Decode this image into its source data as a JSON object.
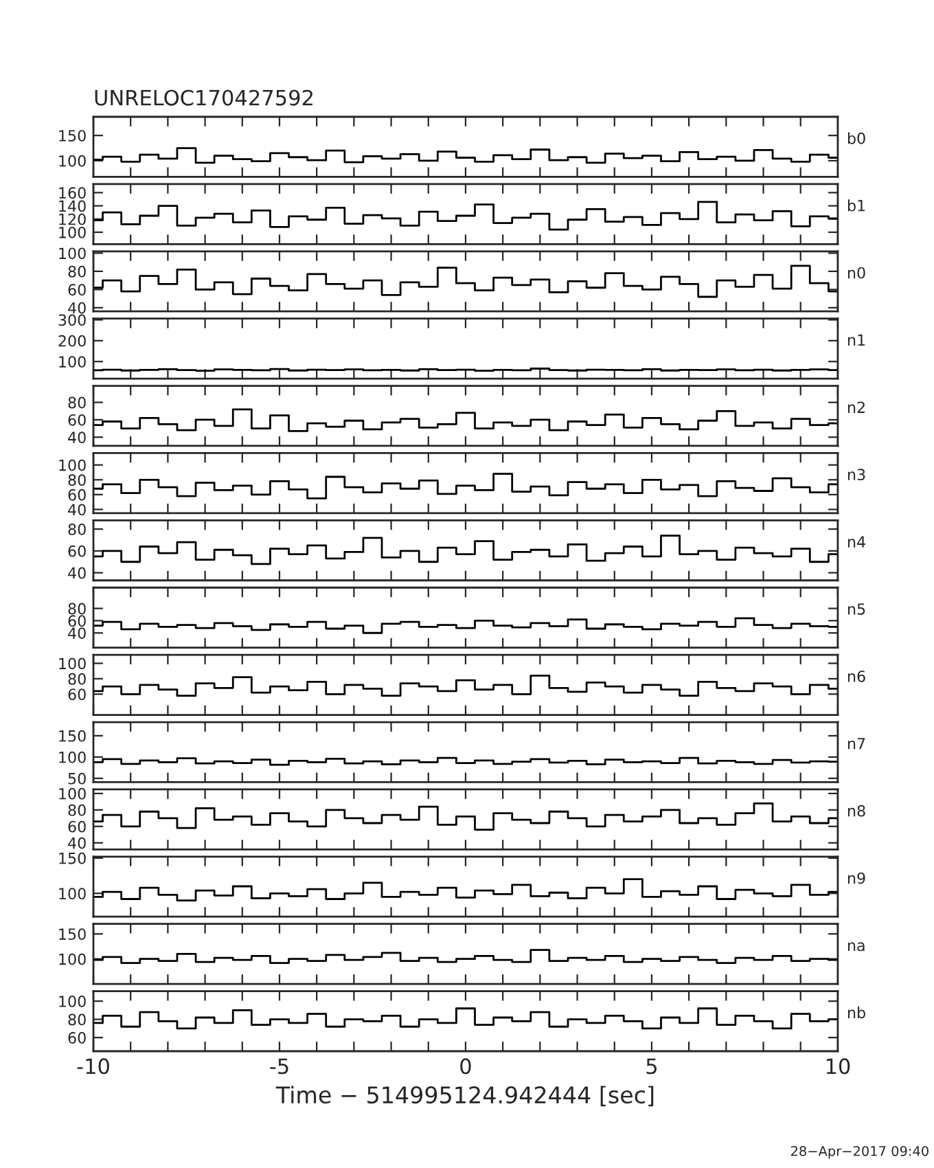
{
  "chart_data": [
    {
      "type": "step",
      "title": "UNRELOC170427592",
      "tick_labels": "y",
      "xlim": [
        -10,
        10
      ],
      "xticks": [
        -10,
        {
          "value": -9,
          "label": null
        },
        {
          "value": -8,
          "label": null
        },
        {
          "value": -7,
          "label": null
        },
        {
          "value": -6,
          "label": null
        },
        -5,
        {
          "value": -4,
          "label": null
        },
        {
          "value": -3,
          "label": null
        },
        {
          "value": -2,
          "label": null
        },
        {
          "value": -1,
          "label": null
        },
        0,
        {
          "value": 1,
          "label": null
        },
        {
          "value": 2,
          "label": null
        },
        {
          "value": 3,
          "label": null
        },
        {
          "value": 4,
          "label": null
        },
        5,
        {
          "value": 6,
          "label": null
        },
        {
          "value": 7,
          "label": null
        },
        {
          "value": 8,
          "label": null
        },
        {
          "value": 9,
          "label": null
        },
        10
      ],
      "ylim": [
        68,
        187
      ],
      "yticks": [
        100,
        150
      ],
      "x": [
        -10,
        -9.5,
        -9,
        -8.5,
        -8,
        -7.5,
        -7,
        -6.5,
        -6,
        -5.5,
        -5,
        -4.5,
        -4,
        -3.5,
        -3,
        -2.5,
        -2,
        -1.5,
        -1,
        -0.5,
        0,
        0.5,
        1,
        1.5,
        2,
        2.5,
        3,
        3.5,
        4,
        4.5,
        5,
        5.5,
        6,
        6.5,
        7,
        7.5,
        8,
        8.5,
        9,
        9.5,
        10
      ],
      "series": [
        {
          "name": "b0",
          "color": "#000000",
          "values": [
            102,
            108,
            98,
            112,
            104,
            125,
            96,
            110,
            103,
            99,
            115,
            107,
            101,
            120,
            97,
            109,
            104,
            113,
            100,
            118,
            106,
            98,
            111,
            103,
            122,
            101,
            107,
            96,
            114,
            105,
            110,
            99,
            117,
            103,
            108,
            100,
            121,
            104,
            98,
            112,
            106
          ]
        }
      ]
    },
    {
      "type": "step",
      "tick_labels": "y",
      "xlim": [
        -10,
        10
      ],
      "xticks": [
        -10,
        {
          "value": -9,
          "label": null
        },
        {
          "value": -8,
          "label": null
        },
        {
          "value": -7,
          "label": null
        },
        {
          "value": -6,
          "label": null
        },
        -5,
        {
          "value": -4,
          "label": null
        },
        {
          "value": -3,
          "label": null
        },
        {
          "value": -2,
          "label": null
        },
        {
          "value": -1,
          "label": null
        },
        0,
        {
          "value": 1,
          "label": null
        },
        {
          "value": 2,
          "label": null
        },
        {
          "value": 3,
          "label": null
        },
        {
          "value": 4,
          "label": null
        },
        5,
        {
          "value": 6,
          "label": null
        },
        {
          "value": 7,
          "label": null
        },
        {
          "value": 8,
          "label": null
        },
        {
          "value": 9,
          "label": null
        },
        10
      ],
      "ylim": [
        82,
        173
      ],
      "yticks": [
        100,
        120,
        140,
        160
      ],
      "x": [
        -10,
        -9.5,
        -9,
        -8.5,
        -8,
        -7.5,
        -7,
        -6.5,
        -6,
        -5.5,
        -5,
        -4.5,
        -4,
        -3.5,
        -3,
        -2.5,
        -2,
        -1.5,
        -1,
        -0.5,
        0,
        0.5,
        1,
        1.5,
        2,
        2.5,
        3,
        3.5,
        4,
        4.5,
        5,
        5.5,
        6,
        6.5,
        7,
        7.5,
        8,
        8.5,
        9,
        9.5,
        10
      ],
      "series": [
        {
          "name": "b1",
          "color": "#000000",
          "values": [
            118,
            130,
            112,
            125,
            140,
            110,
            122,
            128,
            115,
            133,
            108,
            124,
            119,
            137,
            113,
            126,
            121,
            110,
            131,
            117,
            125,
            142,
            114,
            122,
            128,
            104,
            119,
            135,
            116,
            123,
            111,
            129,
            120,
            146,
            115,
            127,
            118,
            132,
            109,
            124,
            121
          ]
        }
      ]
    },
    {
      "type": "step",
      "tick_labels": "y",
      "xlim": [
        -10,
        10
      ],
      "xticks": [
        -10,
        {
          "value": -9,
          "label": null
        },
        {
          "value": -8,
          "label": null
        },
        {
          "value": -7,
          "label": null
        },
        {
          "value": -6,
          "label": null
        },
        -5,
        {
          "value": -4,
          "label": null
        },
        {
          "value": -3,
          "label": null
        },
        {
          "value": -2,
          "label": null
        },
        {
          "value": -1,
          "label": null
        },
        0,
        {
          "value": 1,
          "label": null
        },
        {
          "value": 2,
          "label": null
        },
        {
          "value": 3,
          "label": null
        },
        {
          "value": 4,
          "label": null
        },
        5,
        {
          "value": 6,
          "label": null
        },
        {
          "value": 7,
          "label": null
        },
        {
          "value": 8,
          "label": null
        },
        {
          "value": 9,
          "label": null
        },
        10
      ],
      "ylim": [
        36,
        102
      ],
      "yticks": [
        40,
        60,
        80,
        100
      ],
      "x": [
        -10,
        -9.5,
        -9,
        -8.5,
        -8,
        -7.5,
        -7,
        -6.5,
        -6,
        -5.5,
        -5,
        -4.5,
        -4,
        -3.5,
        -3,
        -2.5,
        -2,
        -1.5,
        -1,
        -0.5,
        0,
        0.5,
        1,
        1.5,
        2,
        2.5,
        3,
        3.5,
        4,
        4.5,
        5,
        5.5,
        6,
        6.5,
        7,
        7.5,
        8,
        8.5,
        9,
        9.5,
        10
      ],
      "series": [
        {
          "name": "n0",
          "color": "#000000",
          "values": [
            62,
            70,
            58,
            75,
            66,
            82,
            60,
            68,
            55,
            72,
            64,
            59,
            77,
            66,
            61,
            70,
            54,
            68,
            63,
            84,
            67,
            59,
            73,
            65,
            71,
            57,
            69,
            62,
            78,
            64,
            60,
            74,
            66,
            52,
            70,
            63,
            76,
            61,
            86,
            67,
            58
          ]
        }
      ]
    },
    {
      "type": "step",
      "tick_labels": "y",
      "xlim": [
        -10,
        10
      ],
      "xticks": [
        -10,
        {
          "value": -9,
          "label": null
        },
        {
          "value": -8,
          "label": null
        },
        {
          "value": -7,
          "label": null
        },
        {
          "value": -6,
          "label": null
        },
        -5,
        {
          "value": -4,
          "label": null
        },
        {
          "value": -3,
          "label": null
        },
        {
          "value": -2,
          "label": null
        },
        {
          "value": -1,
          "label": null
        },
        0,
        {
          "value": 1,
          "label": null
        },
        {
          "value": 2,
          "label": null
        },
        {
          "value": 3,
          "label": null
        },
        {
          "value": 4,
          "label": null
        },
        5,
        {
          "value": 6,
          "label": null
        },
        {
          "value": 7,
          "label": null
        },
        {
          "value": 8,
          "label": null
        },
        {
          "value": 9,
          "label": null
        },
        10
      ],
      "ylim": [
        18,
        306
      ],
      "yticks": [
        100,
        200,
        300
      ],
      "x": [
        -10,
        -9.5,
        -9,
        -8.5,
        -8,
        -7.5,
        -7,
        -6.5,
        -6,
        -5.5,
        -5,
        -4.5,
        -4,
        -3.5,
        -3,
        -2.5,
        -2,
        -1.5,
        -1,
        -0.5,
        0,
        0.5,
        1,
        1.5,
        2,
        2.5,
        3,
        3.5,
        4,
        4.5,
        5,
        5.5,
        6,
        6.5,
        7,
        7.5,
        8,
        8.5,
        9,
        9.5,
        10
      ],
      "series": [
        {
          "name": "n1",
          "color": "#000000",
          "values": [
            58,
            61,
            57,
            60,
            63,
            59,
            56,
            62,
            60,
            58,
            64,
            57,
            61,
            59,
            62,
            58,
            60,
            57,
            63,
            59,
            61,
            56,
            60,
            58,
            66,
            59,
            57,
            61,
            60,
            58,
            63,
            57,
            60,
            59,
            62,
            58,
            61,
            57,
            60,
            62,
            59
          ]
        }
      ]
    },
    {
      "type": "step",
      "tick_labels": "y",
      "xlim": [
        -10,
        10
      ],
      "xticks": [
        -10,
        {
          "value": -9,
          "label": null
        },
        {
          "value": -8,
          "label": null
        },
        {
          "value": -7,
          "label": null
        },
        {
          "value": -6,
          "label": null
        },
        -5,
        {
          "value": -4,
          "label": null
        },
        {
          "value": -3,
          "label": null
        },
        {
          "value": -2,
          "label": null
        },
        {
          "value": -1,
          "label": null
        },
        0,
        {
          "value": 1,
          "label": null
        },
        {
          "value": 2,
          "label": null
        },
        {
          "value": 3,
          "label": null
        },
        {
          "value": 4,
          "label": null
        },
        5,
        {
          "value": 6,
          "label": null
        },
        {
          "value": 7,
          "label": null
        },
        {
          "value": 8,
          "label": null
        },
        {
          "value": 9,
          "label": null
        },
        10
      ],
      "ylim": [
        30,
        99
      ],
      "yticks": [
        40,
        60,
        80
      ],
      "x": [
        -10,
        -9.5,
        -9,
        -8.5,
        -8,
        -7.5,
        -7,
        -6.5,
        -6,
        -5.5,
        -5,
        -4.5,
        -4,
        -3.5,
        -3,
        -2.5,
        -2,
        -1.5,
        -1,
        -0.5,
        0,
        0.5,
        1,
        1.5,
        2,
        2.5,
        3,
        3.5,
        4,
        4.5,
        5,
        5.5,
        6,
        6.5,
        7,
        7.5,
        8,
        8.5,
        9,
        9.5,
        10
      ],
      "series": [
        {
          "name": "n2",
          "color": "#000000",
          "values": [
            54,
            58,
            50,
            62,
            55,
            48,
            60,
            53,
            72,
            50,
            65,
            47,
            56,
            52,
            59,
            49,
            57,
            61,
            51,
            55,
            68,
            50,
            57,
            53,
            60,
            48,
            58,
            54,
            66,
            51,
            62,
            55,
            49,
            59,
            70,
            53,
            57,
            50,
            61,
            54,
            56
          ]
        }
      ]
    },
    {
      "type": "step",
      "tick_labels": "y",
      "xlim": [
        -10,
        10
      ],
      "xticks": [
        -10,
        {
          "value": -9,
          "label": null
        },
        {
          "value": -8,
          "label": null
        },
        {
          "value": -7,
          "label": null
        },
        {
          "value": -6,
          "label": null
        },
        -5,
        {
          "value": -4,
          "label": null
        },
        {
          "value": -3,
          "label": null
        },
        {
          "value": -2,
          "label": null
        },
        {
          "value": -1,
          "label": null
        },
        0,
        {
          "value": 1,
          "label": null
        },
        {
          "value": 2,
          "label": null
        },
        {
          "value": 3,
          "label": null
        },
        {
          "value": 4,
          "label": null
        },
        5,
        {
          "value": 6,
          "label": null
        },
        {
          "value": 7,
          "label": null
        },
        {
          "value": 8,
          "label": null
        },
        {
          "value": 9,
          "label": null
        },
        10
      ],
      "ylim": [
        35,
        116
      ],
      "yticks": [
        40,
        60,
        80,
        100
      ],
      "x": [
        -10,
        -9.5,
        -9,
        -8.5,
        -8,
        -7.5,
        -7,
        -6.5,
        -6,
        -5.5,
        -5,
        -4.5,
        -4,
        -3.5,
        -3,
        -2.5,
        -2,
        -1.5,
        -1,
        -0.5,
        0,
        0.5,
        1,
        1.5,
        2,
        2.5,
        3,
        3.5,
        4,
        4.5,
        5,
        5.5,
        6,
        6.5,
        7,
        7.5,
        8,
        8.5,
        9,
        9.5,
        10
      ],
      "series": [
        {
          "name": "n3",
          "color": "#000000",
          "values": [
            68,
            74,
            62,
            80,
            70,
            58,
            76,
            66,
            72,
            60,
            78,
            67,
            55,
            84,
            70,
            63,
            75,
            68,
            79,
            61,
            72,
            66,
            88,
            64,
            71,
            59,
            77,
            68,
            74,
            62,
            80,
            67,
            73,
            58,
            78,
            69,
            65,
            82,
            70,
            63,
            74
          ]
        }
      ]
    },
    {
      "type": "step",
      "tick_labels": "y",
      "xlim": [
        -10,
        10
      ],
      "xticks": [
        -10,
        {
          "value": -9,
          "label": null
        },
        {
          "value": -8,
          "label": null
        },
        {
          "value": -7,
          "label": null
        },
        {
          "value": -6,
          "label": null
        },
        -5,
        {
          "value": -4,
          "label": null
        },
        {
          "value": -3,
          "label": null
        },
        {
          "value": -2,
          "label": null
        },
        {
          "value": -1,
          "label": null
        },
        0,
        {
          "value": 1,
          "label": null
        },
        {
          "value": 2,
          "label": null
        },
        {
          "value": 3,
          "label": null
        },
        {
          "value": 4,
          "label": null
        },
        5,
        {
          "value": 6,
          "label": null
        },
        {
          "value": 7,
          "label": null
        },
        {
          "value": 8,
          "label": null
        },
        {
          "value": 9,
          "label": null
        },
        10
      ],
      "ylim": [
        33,
        88
      ],
      "yticks": [
        40,
        60,
        80
      ],
      "x": [
        -10,
        -9.5,
        -9,
        -8.5,
        -8,
        -7.5,
        -7,
        -6.5,
        -6,
        -5.5,
        -5,
        -4.5,
        -4,
        -3.5,
        -3,
        -2.5,
        -2,
        -1.5,
        -1,
        -0.5,
        0,
        0.5,
        1,
        1.5,
        2,
        2.5,
        3,
        3.5,
        4,
        4.5,
        5,
        5.5,
        6,
        6.5,
        7,
        7.5,
        8,
        8.5,
        9,
        9.5,
        10
      ],
      "series": [
        {
          "name": "n4",
          "color": "#000000",
          "values": [
            55,
            60,
            50,
            64,
            58,
            68,
            52,
            61,
            56,
            48,
            62,
            57,
            65,
            53,
            59,
            72,
            54,
            60,
            50,
            63,
            57,
            69,
            52,
            59,
            61,
            55,
            66,
            51,
            58,
            64,
            55,
            74,
            57,
            60,
            52,
            63,
            58,
            55,
            62,
            50,
            57
          ]
        }
      ]
    },
    {
      "type": "step",
      "tick_labels": "y",
      "xlim": [
        -10,
        10
      ],
      "xticks": [
        -10,
        {
          "value": -9,
          "label": null
        },
        {
          "value": -8,
          "label": null
        },
        {
          "value": -7,
          "label": null
        },
        {
          "value": -6,
          "label": null
        },
        -5,
        {
          "value": -4,
          "label": null
        },
        {
          "value": -3,
          "label": null
        },
        {
          "value": -2,
          "label": null
        },
        {
          "value": -1,
          "label": null
        },
        0,
        {
          "value": 1,
          "label": null
        },
        {
          "value": 2,
          "label": null
        },
        {
          "value": 3,
          "label": null
        },
        {
          "value": 4,
          "label": null
        },
        5,
        {
          "value": 6,
          "label": null
        },
        {
          "value": 7,
          "label": null
        },
        {
          "value": 8,
          "label": null
        },
        {
          "value": 9,
          "label": null
        },
        10
      ],
      "ylim": [
        16,
        114
      ],
      "yticks": [
        40,
        60,
        80
      ],
      "x": [
        -10,
        -9.5,
        -9,
        -8.5,
        -8,
        -7.5,
        -7,
        -6.5,
        -6,
        -5.5,
        -5,
        -4.5,
        -4,
        -3.5,
        -3,
        -2.5,
        -2,
        -1.5,
        -1,
        -0.5,
        0,
        0.5,
        1,
        1.5,
        2,
        2.5,
        3,
        3.5,
        4,
        4.5,
        5,
        5.5,
        6,
        6.5,
        7,
        7.5,
        8,
        8.5,
        9,
        9.5,
        10
      ],
      "series": [
        {
          "name": "n5",
          "color": "#000000",
          "values": [
            52,
            58,
            46,
            55,
            50,
            53,
            48,
            56,
            51,
            45,
            54,
            50,
            58,
            47,
            52,
            40,
            55,
            58,
            50,
            53,
            48,
            60,
            52,
            49,
            56,
            51,
            62,
            47,
            54,
            50,
            46,
            55,
            52,
            58,
            50,
            64,
            53,
            48,
            55,
            51,
            50
          ]
        }
      ]
    },
    {
      "type": "step",
      "tick_labels": "y",
      "xlim": [
        -10,
        10
      ],
      "xticks": [
        -10,
        {
          "value": -9,
          "label": null
        },
        {
          "value": -8,
          "label": null
        },
        {
          "value": -7,
          "label": null
        },
        {
          "value": -6,
          "label": null
        },
        -5,
        {
          "value": -4,
          "label": null
        },
        {
          "value": -3,
          "label": null
        },
        {
          "value": -2,
          "label": null
        },
        {
          "value": -1,
          "label": null
        },
        0,
        {
          "value": 1,
          "label": null
        },
        {
          "value": 2,
          "label": null
        },
        {
          "value": 3,
          "label": null
        },
        {
          "value": 4,
          "label": null
        },
        5,
        {
          "value": 6,
          "label": null
        },
        {
          "value": 7,
          "label": null
        },
        {
          "value": 8,
          "label": null
        },
        {
          "value": 9,
          "label": null
        },
        10
      ],
      "ylim": [
        33,
        111
      ],
      "yticks": [
        60,
        80,
        100
      ],
      "x": [
        -10,
        -9.5,
        -9,
        -8.5,
        -8,
        -7.5,
        -7,
        -6.5,
        -6,
        -5.5,
        -5,
        -4.5,
        -4,
        -3.5,
        -3,
        -2.5,
        -2,
        -1.5,
        -1,
        -0.5,
        0,
        0.5,
        1,
        1.5,
        2,
        2.5,
        3,
        3.5,
        4,
        4.5,
        5,
        5.5,
        6,
        6.5,
        7,
        7.5,
        8,
        8.5,
        9,
        9.5,
        10
      ],
      "series": [
        {
          "name": "n6",
          "color": "#000000",
          "values": [
            64,
            70,
            60,
            72,
            66,
            58,
            74,
            68,
            82,
            62,
            70,
            65,
            76,
            60,
            72,
            67,
            58,
            74,
            70,
            64,
            78,
            66,
            72,
            60,
            84,
            68,
            63,
            75,
            70,
            62,
            72,
            66,
            58,
            76,
            68,
            64,
            74,
            70,
            60,
            72,
            67
          ]
        }
      ]
    },
    {
      "type": "step",
      "tick_labels": "y",
      "xlim": [
        -10,
        10
      ],
      "xticks": [
        -10,
        {
          "value": -9,
          "label": null
        },
        {
          "value": -8,
          "label": null
        },
        {
          "value": -7,
          "label": null
        },
        {
          "value": -6,
          "label": null
        },
        -5,
        {
          "value": -4,
          "label": null
        },
        {
          "value": -3,
          "label": null
        },
        {
          "value": -2,
          "label": null
        },
        {
          "value": -1,
          "label": null
        },
        0,
        {
          "value": 1,
          "label": null
        },
        {
          "value": 2,
          "label": null
        },
        {
          "value": 3,
          "label": null
        },
        {
          "value": 4,
          "label": null
        },
        5,
        {
          "value": 6,
          "label": null
        },
        {
          "value": 7,
          "label": null
        },
        {
          "value": 8,
          "label": null
        },
        {
          "value": 9,
          "label": null
        },
        10
      ],
      "ylim": [
        41,
        182
      ],
      "yticks": [
        50,
        100,
        150
      ],
      "x": [
        -10,
        -9.5,
        -9,
        -8.5,
        -8,
        -7.5,
        -7,
        -6.5,
        -6,
        -5.5,
        -5,
        -4.5,
        -4,
        -3.5,
        -3,
        -2.5,
        -2,
        -1.5,
        -1,
        -0.5,
        0,
        0.5,
        1,
        1.5,
        2,
        2.5,
        3,
        3.5,
        4,
        4.5,
        5,
        5.5,
        6,
        6.5,
        7,
        7.5,
        8,
        8.5,
        9,
        9.5,
        10
      ],
      "series": [
        {
          "name": "n7",
          "color": "#000000",
          "values": [
            88,
            95,
            84,
            92,
            88,
            97,
            85,
            90,
            86,
            94,
            82,
            91,
            88,
            96,
            85,
            90,
            83,
            92,
            88,
            98,
            86,
            92,
            84,
            89,
            95,
            87,
            91,
            83,
            94,
            88,
            90,
            86,
            98,
            85,
            91,
            88,
            84,
            93,
            87,
            90,
            89
          ]
        }
      ]
    },
    {
      "type": "step",
      "tick_labels": "y",
      "xlim": [
        -10,
        10
      ],
      "xticks": [
        -10,
        {
          "value": -9,
          "label": null
        },
        {
          "value": -8,
          "label": null
        },
        {
          "value": -7,
          "label": null
        },
        {
          "value": -6,
          "label": null
        },
        -5,
        {
          "value": -4,
          "label": null
        },
        {
          "value": -3,
          "label": null
        },
        {
          "value": -2,
          "label": null
        },
        {
          "value": -1,
          "label": null
        },
        0,
        {
          "value": 1,
          "label": null
        },
        {
          "value": 2,
          "label": null
        },
        {
          "value": 3,
          "label": null
        },
        {
          "value": 4,
          "label": null
        },
        5,
        {
          "value": 6,
          "label": null
        },
        {
          "value": 7,
          "label": null
        },
        {
          "value": 8,
          "label": null
        },
        {
          "value": 9,
          "label": null
        },
        10
      ],
      "ylim": [
        32,
        105
      ],
      "yticks": [
        40,
        60,
        80,
        100
      ],
      "x": [
        -10,
        -9.5,
        -9,
        -8.5,
        -8,
        -7.5,
        -7,
        -6.5,
        -6,
        -5.5,
        -5,
        -4.5,
        -4,
        -3.5,
        -3,
        -2.5,
        -2,
        -1.5,
        -1,
        -0.5,
        0,
        0.5,
        1,
        1.5,
        2,
        2.5,
        3,
        3.5,
        4,
        4.5,
        5,
        5.5,
        6,
        6.5,
        7,
        7.5,
        8,
        8.5,
        9,
        9.5,
        10
      ],
      "series": [
        {
          "name": "n8",
          "color": "#000000",
          "values": [
            66,
            74,
            60,
            78,
            70,
            58,
            82,
            68,
            72,
            62,
            76,
            66,
            60,
            80,
            70,
            64,
            74,
            68,
            84,
            62,
            72,
            56,
            76,
            68,
            64,
            78,
            70,
            60,
            74,
            66,
            72,
            80,
            64,
            70,
            62,
            76,
            88,
            66,
            72,
            64,
            70
          ]
        }
      ]
    },
    {
      "type": "step",
      "tick_labels": "y",
      "xlim": [
        -10,
        10
      ],
      "xticks": [
        -10,
        {
          "value": -9,
          "label": null
        },
        {
          "value": -8,
          "label": null
        },
        {
          "value": -7,
          "label": null
        },
        {
          "value": -6,
          "label": null
        },
        -5,
        {
          "value": -4,
          "label": null
        },
        {
          "value": -3,
          "label": null
        },
        {
          "value": -2,
          "label": null
        },
        {
          "value": -1,
          "label": null
        },
        0,
        {
          "value": 1,
          "label": null
        },
        {
          "value": 2,
          "label": null
        },
        {
          "value": 3,
          "label": null
        },
        {
          "value": 4,
          "label": null
        },
        5,
        {
          "value": 6,
          "label": null
        },
        {
          "value": 7,
          "label": null
        },
        {
          "value": 8,
          "label": null
        },
        {
          "value": 9,
          "label": null
        },
        10
      ],
      "ylim": [
        67,
        152
      ],
      "yticks": [
        100,
        150
      ],
      "x": [
        -10,
        -9.5,
        -9,
        -8.5,
        -8,
        -7.5,
        -7,
        -6.5,
        -6,
        -5.5,
        -5,
        -4.5,
        -4,
        -3.5,
        -3,
        -2.5,
        -2,
        -1.5,
        -1,
        -0.5,
        0,
        0.5,
        1,
        1.5,
        2,
        2.5,
        3,
        3.5,
        4,
        4.5,
        5,
        5.5,
        6,
        6.5,
        7,
        7.5,
        8,
        8.5,
        9,
        9.5,
        10
      ],
      "series": [
        {
          "name": "n9",
          "color": "#000000",
          "values": [
            95,
            102,
            92,
            108,
            98,
            90,
            104,
            97,
            110,
            93,
            100,
            96,
            106,
            92,
            100,
            115,
            95,
            102,
            98,
            108,
            94,
            104,
            99,
            112,
            96,
            101,
            93,
            108,
            100,
            120,
            95,
            103,
            98,
            110,
            92,
            105,
            100,
            96,
            112,
            98,
            102
          ]
        }
      ]
    },
    {
      "type": "step",
      "tick_labels": "y",
      "xlim": [
        -10,
        10
      ],
      "xticks": [
        -10,
        {
          "value": -9,
          "label": null
        },
        {
          "value": -8,
          "label": null
        },
        {
          "value": -7,
          "label": null
        },
        {
          "value": -6,
          "label": null
        },
        -5,
        {
          "value": -4,
          "label": null
        },
        {
          "value": -3,
          "label": null
        },
        {
          "value": -2,
          "label": null
        },
        {
          "value": -1,
          "label": null
        },
        0,
        {
          "value": 1,
          "label": null
        },
        {
          "value": 2,
          "label": null
        },
        {
          "value": 3,
          "label": null
        },
        {
          "value": 4,
          "label": null
        },
        5,
        {
          "value": 6,
          "label": null
        },
        {
          "value": 7,
          "label": null
        },
        {
          "value": 8,
          "label": null
        },
        {
          "value": 9,
          "label": null
        },
        10
      ],
      "ylim": [
        50,
        170
      ],
      "yticks": [
        100,
        150
      ],
      "x": [
        -10,
        -9.5,
        -9,
        -8.5,
        -8,
        -7.5,
        -7,
        -6.5,
        -6,
        -5.5,
        -5,
        -4.5,
        -4,
        -3.5,
        -3,
        -2.5,
        -2,
        -1.5,
        -1,
        -0.5,
        0,
        0.5,
        1,
        1.5,
        2,
        2.5,
        3,
        3.5,
        4,
        4.5,
        5,
        5.5,
        6,
        6.5,
        7,
        7.5,
        8,
        8.5,
        9,
        9.5,
        10
      ],
      "series": [
        {
          "name": "na",
          "color": "#000000",
          "values": [
            98,
            104,
            92,
            100,
            96,
            110,
            94,
            102,
            98,
            106,
            92,
            100,
            96,
            108,
            98,
            104,
            112,
            96,
            102,
            94,
            100,
            106,
            98,
            94,
            118,
            96,
            102,
            98,
            106,
            94,
            100,
            96,
            104,
            98,
            92,
            102,
            98,
            106,
            96,
            100,
            98
          ]
        }
      ]
    },
    {
      "type": "step",
      "xlabel": "Time − 514995124.942444 [sec]",
      "annotations": [
        "28−Apr−2017 09:40"
      ],
      "xlim": [
        -10,
        10
      ],
      "xticks": [
        -10,
        {
          "value": -9,
          "label": null
        },
        {
          "value": -8,
          "label": null
        },
        {
          "value": -7,
          "label": null
        },
        {
          "value": -6,
          "label": null
        },
        -5,
        {
          "value": -4,
          "label": null
        },
        {
          "value": -3,
          "label": null
        },
        {
          "value": -2,
          "label": null
        },
        {
          "value": -1,
          "label": null
        },
        0,
        {
          "value": 1,
          "label": null
        },
        {
          "value": 2,
          "label": null
        },
        {
          "value": 3,
          "label": null
        },
        {
          "value": 4,
          "label": null
        },
        5,
        {
          "value": 6,
          "label": null
        },
        {
          "value": 7,
          "label": null
        },
        {
          "value": 8,
          "label": null
        },
        {
          "value": 9,
          "label": null
        },
        10
      ],
      "ylim": [
        45,
        111
      ],
      "yticks": [
        60,
        80,
        100
      ],
      "x": [
        -10,
        -9.5,
        -9,
        -8.5,
        -8,
        -7.5,
        -7,
        -6.5,
        -6,
        -5.5,
        -5,
        -4.5,
        -4,
        -3.5,
        -3,
        -2.5,
        -2,
        -1.5,
        -1,
        -0.5,
        0,
        0.5,
        1,
        1.5,
        2,
        2.5,
        3,
        3.5,
        4,
        4.5,
        5,
        5.5,
        6,
        6.5,
        7,
        7.5,
        8,
        8.5,
        9,
        9.5,
        10
      ],
      "series": [
        {
          "name": "nb",
          "color": "#000000",
          "values": [
            76,
            84,
            72,
            88,
            78,
            70,
            82,
            76,
            90,
            74,
            80,
            76,
            86,
            72,
            80,
            78,
            84,
            72,
            80,
            76,
            92,
            74,
            82,
            78,
            88,
            72,
            80,
            76,
            84,
            78,
            70,
            82,
            76,
            92,
            74,
            84,
            78,
            70,
            86,
            78,
            80
          ]
        }
      ]
    }
  ]
}
